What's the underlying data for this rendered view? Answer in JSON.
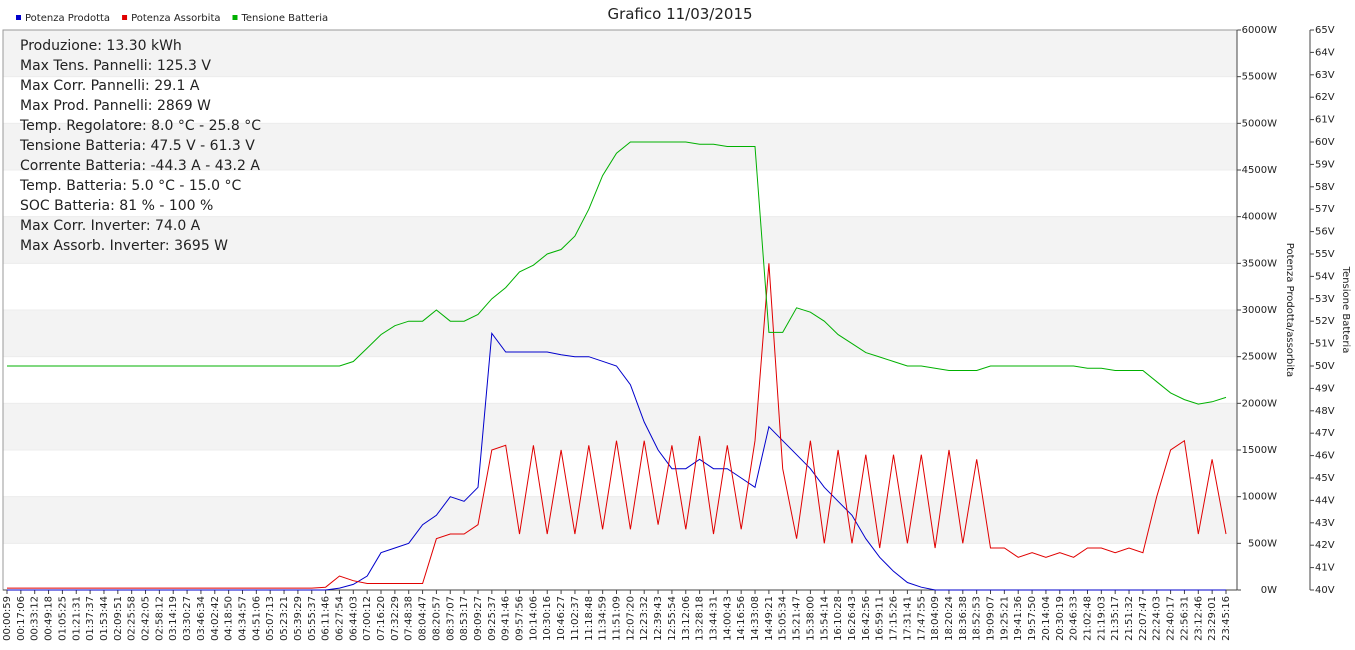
{
  "chart_data": {
    "type": "line",
    "title": "Grafico 11/03/2015",
    "annotations": [
      "Produzione: 13.30 kWh",
      "Max Tens. Pannelli: 125.3 V",
      "Max Corr. Pannelli: 29.1 A",
      "Max Prod. Pannelli: 2869 W",
      "Temp. Regolatore: 8.0 °C - 25.8 °C",
      "Tensione Batteria: 47.5 V - 61.3 V",
      "Corrente Batteria: -44.3 A - 43.2 A",
      "Temp. Batteria: 5.0 °C - 15.0 °C",
      "SOC Batteria: 81 % - 100 %",
      "Max Corr. Inverter: 74.0 A",
      "Max Assorb. Inverter: 3695 W"
    ],
    "y_label": "Potenza Prodotta/assorbita",
    "y2_label": "Tensione Batteria",
    "categories": [
      "00:00:59",
      "00:17:06",
      "00:33:12",
      "00:49:18",
      "01:05:25",
      "01:21:31",
      "01:37:37",
      "01:53:44",
      "02:09:51",
      "02:25:58",
      "02:42:05",
      "02:58:12",
      "03:14:19",
      "03:30:27",
      "03:46:34",
      "04:02:42",
      "04:18:50",
      "04:34:57",
      "04:51:06",
      "05:07:13",
      "05:23:21",
      "05:39:29",
      "05:55:37",
      "06:11:46",
      "06:27:54",
      "06:44:03",
      "07:00:12",
      "07:16:20",
      "07:32:29",
      "07:48:38",
      "08:04:47",
      "08:20:57",
      "08:37:07",
      "08:53:17",
      "09:09:27",
      "09:25:37",
      "09:41:46",
      "09:57:56",
      "10:14:06",
      "10:30:16",
      "10:46:27",
      "11:02:37",
      "11:18:48",
      "11:34:59",
      "11:51:09",
      "12:07:20",
      "12:23:32",
      "12:39:43",
      "12:55:54",
      "13:12:06",
      "13:28:18",
      "13:44:31",
      "14:00:43",
      "14:16:56",
      "14:33:08",
      "14:49:21",
      "15:05:34",
      "15:21:47",
      "15:38:00",
      "15:54:14",
      "16:10:28",
      "16:26:43",
      "16:42:56",
      "16:59:11",
      "17:15:26",
      "17:31:41",
      "17:47:55",
      "18:04:09",
      "18:20:24",
      "18:36:38",
      "18:52:53",
      "19:09:07",
      "19:25:21",
      "19:41:36",
      "19:57:50",
      "20:14:04",
      "20:30:19",
      "20:46:33",
      "21:02:48",
      "21:19:03",
      "21:35:17",
      "21:51:32",
      "22:07:47",
      "22:24:03",
      "22:40:17",
      "22:56:31",
      "23:12:46",
      "23:29:01",
      "23:45:16"
    ],
    "series": [
      {
        "name": "Potenza Prodotta",
        "color": "#0000cc",
        "values": [
          0,
          0,
          0,
          0,
          0,
          0,
          0,
          0,
          0,
          0,
          0,
          0,
          0,
          0,
          0,
          0,
          0,
          0,
          0,
          0,
          0,
          0,
          0,
          0,
          20,
          60,
          150,
          400,
          450,
          500,
          700,
          800,
          1000,
          950,
          1100,
          2750,
          2550,
          2550,
          2550,
          2550,
          2520,
          2500,
          2500,
          2450,
          2400,
          2200,
          1800,
          1500,
          1300,
          1300,
          1400,
          1300,
          1300,
          1200,
          1100,
          1750,
          1600,
          1450,
          1300,
          1100,
          950,
          800,
          550,
          350,
          200,
          80,
          30,
          0,
          0,
          0,
          0,
          0,
          0,
          0,
          0,
          0,
          0,
          0,
          0,
          0,
          0,
          0,
          0,
          0,
          0,
          0,
          0,
          0,
          0
        ]
      },
      {
        "name": "Potenza Assorbita",
        "color": "#e00000",
        "values": [
          20,
          20,
          20,
          20,
          20,
          20,
          20,
          20,
          20,
          20,
          20,
          20,
          20,
          20,
          20,
          20,
          20,
          20,
          20,
          20,
          20,
          20,
          20,
          30,
          150,
          100,
          70,
          70,
          70,
          70,
          70,
          550,
          600,
          600,
          700,
          1500,
          1550,
          600,
          1550,
          600,
          1500,
          600,
          1550,
          650,
          1600,
          650,
          1600,
          700,
          1550,
          650,
          1650,
          600,
          1550,
          650,
          1600,
          3500,
          1300,
          550,
          1600,
          500,
          1500,
          500,
          1450,
          450,
          1450,
          500,
          1450,
          450,
          1500,
          500,
          1400,
          450,
          450,
          350,
          400,
          350,
          400,
          350,
          450,
          450,
          400,
          450,
          400,
          1000,
          1500,
          1600,
          600,
          1400,
          600
        ]
      },
      {
        "name": "Tensione Batteria",
        "color": "#00b000",
        "axis": "y2",
        "values": [
          50,
          50,
          50,
          50,
          50,
          50,
          50,
          50,
          50,
          50,
          50,
          50,
          50,
          50,
          50,
          50,
          50,
          50,
          50,
          50,
          50,
          50,
          50,
          50,
          50,
          50.2,
          50.8,
          51.4,
          51.8,
          52,
          52,
          52.5,
          52,
          52,
          52.3,
          53,
          53.5,
          54.2,
          54.5,
          55,
          55.2,
          55.8,
          57,
          58.5,
          59.5,
          60,
          60,
          60,
          60,
          60,
          59.9,
          59.9,
          59.8,
          59.8,
          59.8,
          51.5,
          51.5,
          52.6,
          52.4,
          52,
          51.4,
          51,
          50.6,
          50.4,
          50.2,
          50,
          50,
          49.9,
          49.8,
          49.8,
          49.8,
          50,
          50,
          50,
          50,
          50,
          50,
          50,
          49.9,
          49.9,
          49.8,
          49.8,
          49.8,
          49.3,
          48.8,
          48.5,
          48.3,
          48.4,
          48.6
        ]
      }
    ],
    "ylim": [
      0,
      6000
    ],
    "yticks": [
      {
        "value": 0,
        "label": "0W"
      },
      {
        "value": 500,
        "label": "500W"
      },
      {
        "value": 1000,
        "label": "1000W"
      },
      {
        "value": 1500,
        "label": "1500W"
      },
      {
        "value": 2000,
        "label": "2000W"
      },
      {
        "value": 2500,
        "label": "2500W"
      },
      {
        "value": 3000,
        "label": "3000W"
      },
      {
        "value": 3500,
        "label": "3500W"
      },
      {
        "value": 4000,
        "label": "4000W"
      },
      {
        "value": 4500,
        "label": "4500W"
      },
      {
        "value": 5000,
        "label": "5000W"
      },
      {
        "value": 5500,
        "label": "5500W"
      },
      {
        "value": 6000,
        "label": "6000W"
      }
    ],
    "y2lim": [
      40,
      65
    ],
    "y2ticks": [
      {
        "value": 40,
        "label": "40V"
      },
      {
        "value": 41,
        "label": "41V"
      },
      {
        "value": 42,
        "label": "42V"
      },
      {
        "value": 43,
        "label": "43V"
      },
      {
        "value": 44,
        "label": "44V"
      },
      {
        "value": 45,
        "label": "45V"
      },
      {
        "value": 46,
        "label": "46V"
      },
      {
        "value": 47,
        "label": "47V"
      },
      {
        "value": 48,
        "label": "48V"
      },
      {
        "value": 49,
        "label": "49V"
      },
      {
        "value": 50,
        "label": "50V"
      },
      {
        "value": 51,
        "label": "51V"
      },
      {
        "value": 52,
        "label": "52V"
      },
      {
        "value": 53,
        "label": "53V"
      },
      {
        "value": 54,
        "label": "54V"
      },
      {
        "value": 55,
        "label": "55V"
      },
      {
        "value": 56,
        "label": "56V"
      },
      {
        "value": 57,
        "label": "57V"
      },
      {
        "value": 58,
        "label": "58V"
      },
      {
        "value": 59,
        "label": "59V"
      },
      {
        "value": 60,
        "label": "60V"
      },
      {
        "value": 61,
        "label": "61V"
      },
      {
        "value": 62,
        "label": "62V"
      },
      {
        "value": 63,
        "label": "63V"
      },
      {
        "value": 64,
        "label": "64V"
      },
      {
        "value": 65,
        "label": "65V"
      }
    ],
    "grid": true
  }
}
